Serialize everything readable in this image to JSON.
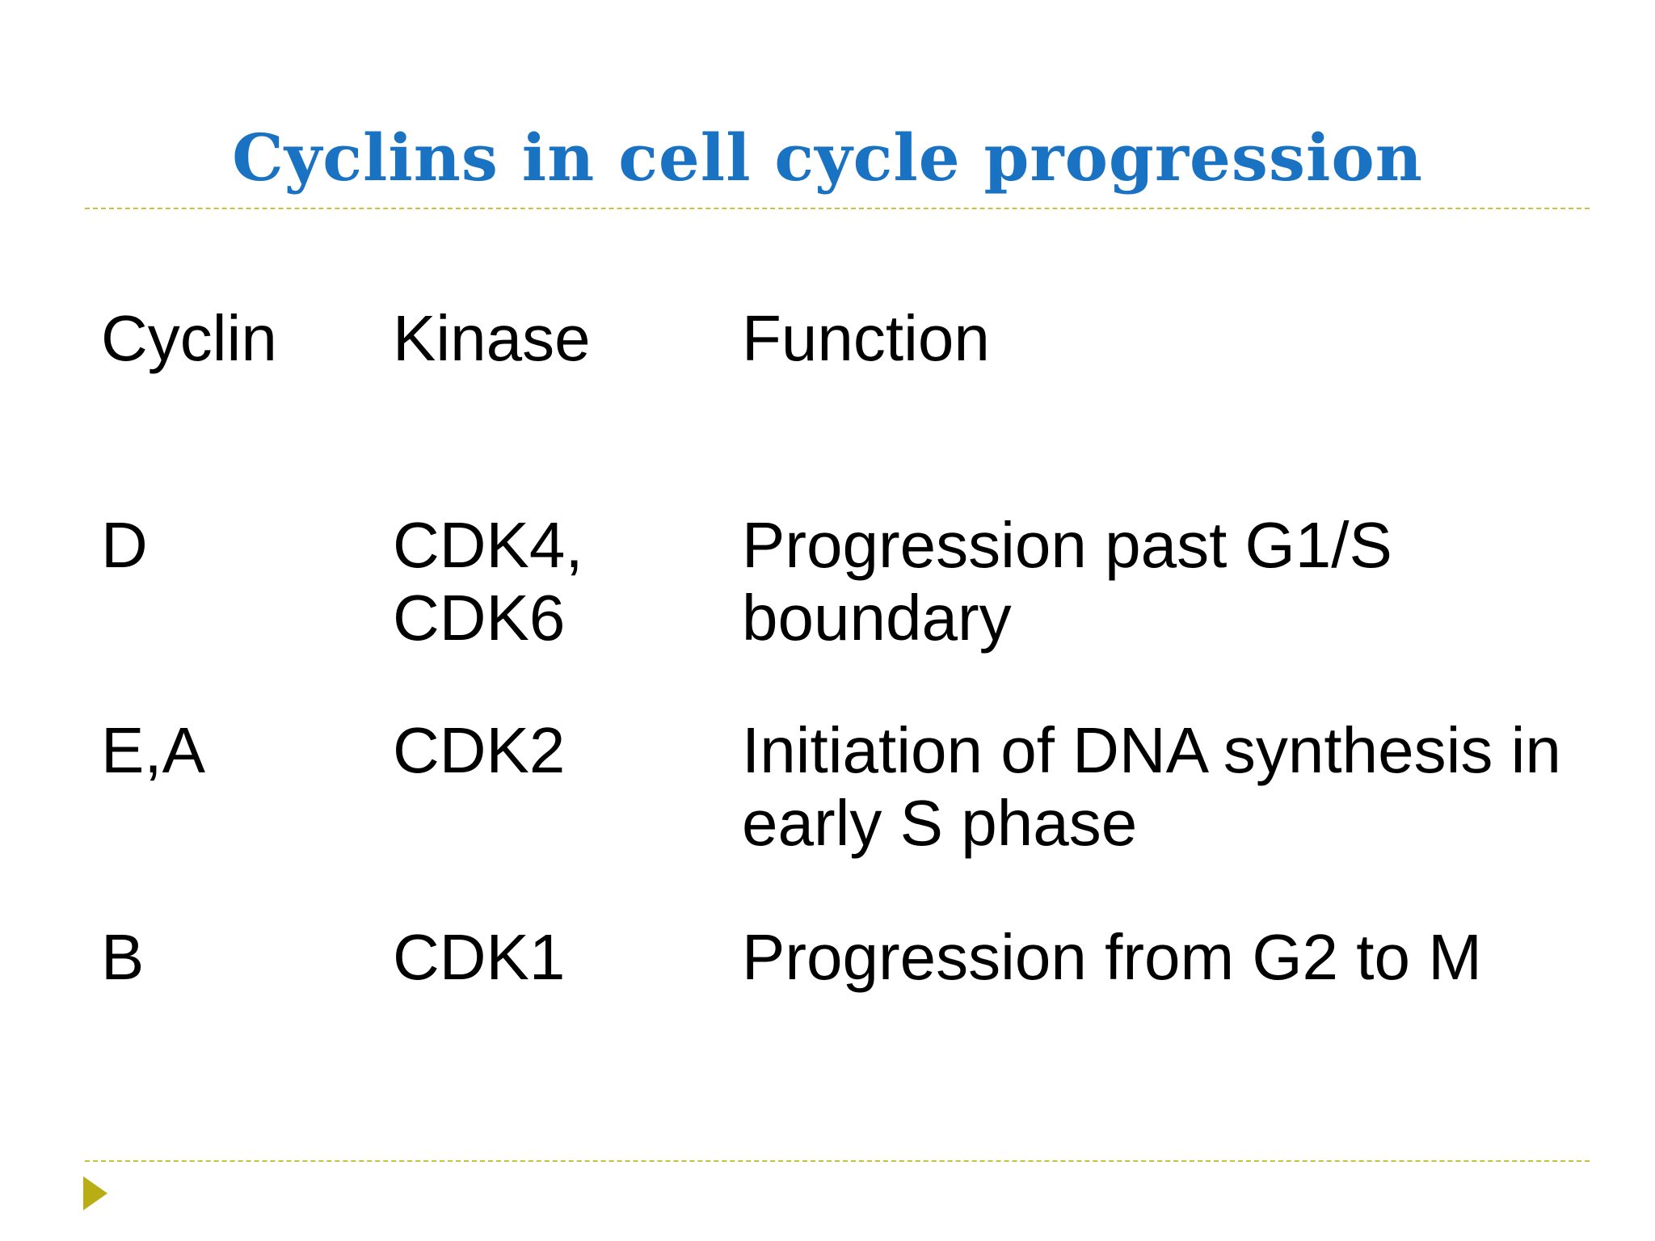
{
  "title": "Cyclins in cell cycle progression",
  "table": {
    "headers": [
      "Cyclin",
      "Kinase",
      "Function"
    ],
    "rows": [
      [
        [
          "D"
        ],
        [
          "CDK4,",
          "CDK6"
        ],
        [
          "Progression past G1/S",
          "boundary"
        ]
      ],
      [
        [
          "E,A"
        ],
        [
          "CDK2"
        ],
        [
          "Initiation of DNA synthesis in",
          "early S phase"
        ]
      ],
      [
        [
          "B"
        ],
        [
          "CDK1"
        ],
        [
          "Progression from G2 to M"
        ]
      ]
    ]
  }
}
